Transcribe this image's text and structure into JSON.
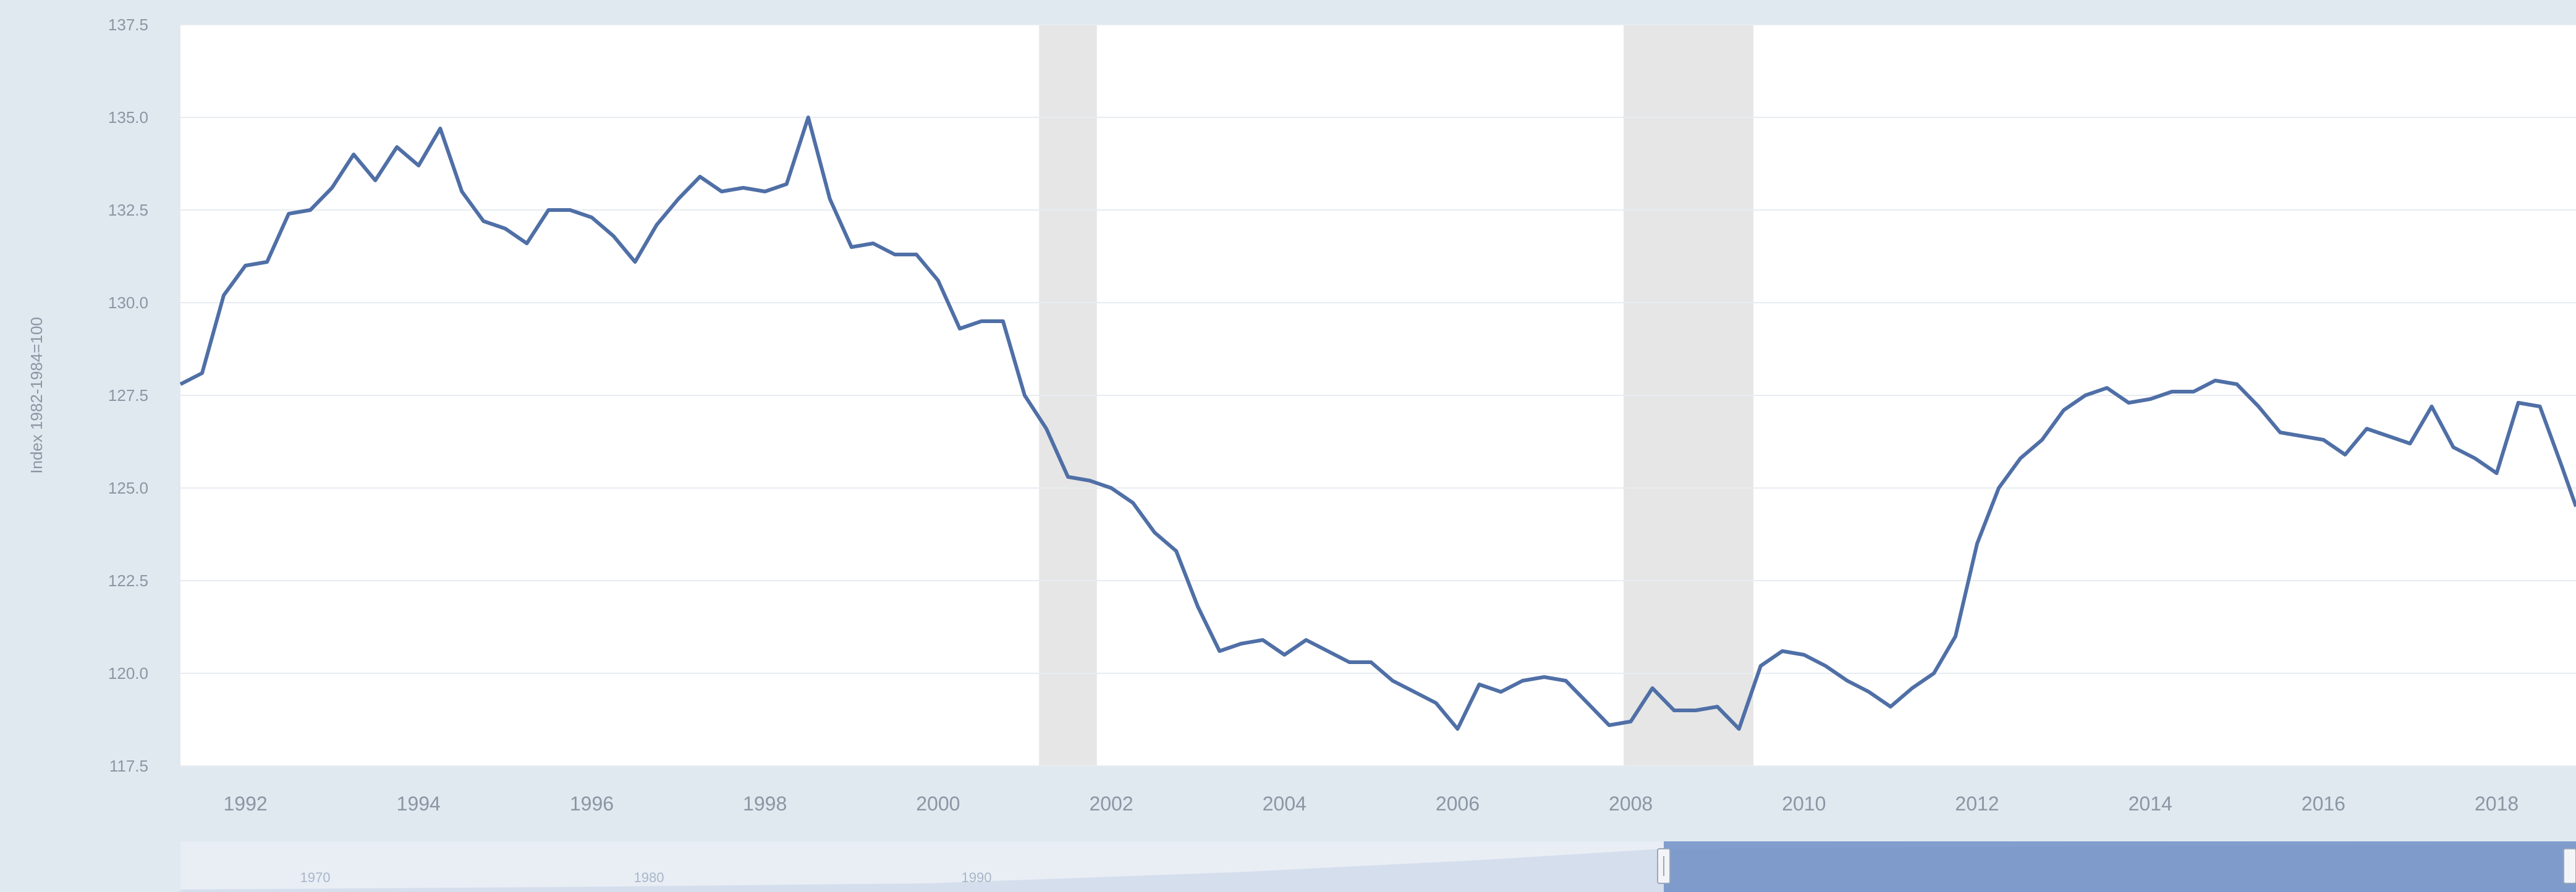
{
  "chart_data": {
    "type": "line",
    "title": "",
    "xlabel": "",
    "ylabel": "Index 1982-1984=100",
    "xlim": [
      "1991-04",
      "2018-12"
    ],
    "ylim": [
      117.5,
      137.5
    ],
    "yticks": [
      "117.5",
      "120.0",
      "122.5",
      "125.0",
      "127.5",
      "130.0",
      "132.5",
      "135.0",
      "137.5"
    ],
    "xticks": [
      "1992",
      "1994",
      "1996",
      "1998",
      "2000",
      "2002",
      "2004",
      "2006",
      "2008",
      "2010",
      "2012",
      "2014",
      "2016",
      "2018"
    ],
    "grid": true,
    "color": "#4f6fa6",
    "recessions": [
      {
        "start": "2001-03",
        "end": "2001-11"
      },
      {
        "start": "2007-12",
        "end": "2009-06"
      }
    ],
    "series": [
      {
        "x": [
          "1991-04",
          "1991-07",
          "1991-10",
          "1992-01",
          "1992-04",
          "1992-07",
          "1992-10",
          "1993-01",
          "1993-04",
          "1993-07",
          "1993-10",
          "1994-01",
          "1994-04",
          "1994-07",
          "1994-10",
          "1995-01",
          "1995-04",
          "1995-07",
          "1995-10",
          "1996-01",
          "1996-04",
          "1996-07",
          "1996-10",
          "1997-01",
          "1997-04",
          "1997-07",
          "1997-10",
          "1998-01",
          "1998-04",
          "1998-07",
          "1998-10",
          "1999-01",
          "1999-04",
          "1999-07",
          "1999-10",
          "2000-01",
          "2000-04",
          "2000-07",
          "2000-10",
          "2001-01",
          "2001-04",
          "2001-07",
          "2001-10",
          "2002-01",
          "2002-04",
          "2002-07",
          "2002-10",
          "2003-01",
          "2003-04",
          "2003-07",
          "2003-10",
          "2004-01",
          "2004-04",
          "2004-07",
          "2004-10",
          "2005-01",
          "2005-04",
          "2005-07",
          "2005-10",
          "2006-01",
          "2006-04",
          "2006-07",
          "2006-10",
          "2007-01",
          "2007-04",
          "2007-07",
          "2007-10",
          "2008-01",
          "2008-04",
          "2008-07",
          "2008-10",
          "2009-01",
          "2009-04",
          "2009-07",
          "2009-10",
          "2010-01",
          "2010-04",
          "2010-07",
          "2010-10",
          "2011-01",
          "2011-04",
          "2011-07",
          "2011-10",
          "2012-01",
          "2012-04",
          "2012-07",
          "2012-10",
          "2013-01",
          "2013-04",
          "2013-07",
          "2013-10",
          "2014-01",
          "2014-04",
          "2014-07",
          "2014-10",
          "2015-01",
          "2015-04",
          "2015-07",
          "2015-10",
          "2016-01",
          "2016-04",
          "2016-07",
          "2016-10",
          "2017-01",
          "2017-04",
          "2017-07",
          "2017-10",
          "2018-01",
          "2018-04",
          "2018-07",
          "2018-10",
          "2018-12"
        ],
        "y": [
          127.8,
          128.1,
          130.2,
          131.0,
          131.1,
          132.4,
          132.5,
          133.1,
          134.0,
          133.3,
          134.2,
          133.7,
          134.7,
          133.0,
          132.2,
          132.0,
          131.6,
          132.5,
          132.5,
          132.3,
          131.8,
          131.1,
          132.1,
          132.8,
          133.4,
          133.0,
          133.1,
          133.0,
          133.2,
          135.0,
          132.8,
          131.5,
          131.6,
          131.3,
          131.3,
          130.6,
          129.3,
          129.5,
          129.5,
          127.5,
          126.6,
          125.3,
          125.2,
          125.0,
          124.6,
          123.8,
          123.3,
          121.8,
          120.6,
          120.8,
          120.9,
          120.5,
          120.9,
          120.6,
          120.3,
          120.3,
          119.8,
          119.5,
          119.2,
          118.5,
          119.7,
          119.5,
          119.8,
          119.9,
          119.8,
          119.2,
          118.6,
          118.7,
          119.6,
          119.0,
          119.0,
          119.1,
          118.5,
          120.2,
          120.6,
          120.5,
          120.2,
          119.8,
          119.5,
          119.1,
          119.6,
          120.0,
          121.0,
          123.5,
          125.0,
          125.8,
          126.3,
          127.1,
          127.5,
          127.7,
          127.3,
          127.4,
          127.6,
          127.6,
          127.9,
          127.8,
          127.2,
          126.5,
          126.4,
          126.3,
          125.9,
          126.6,
          126.4,
          126.2,
          127.2,
          126.1,
          125.8,
          125.4,
          127.3,
          127.2,
          125.6,
          124.5
        ]
      }
    ]
  },
  "navigator": {
    "ticks": [
      "1970",
      "1980",
      "1990"
    ]
  }
}
